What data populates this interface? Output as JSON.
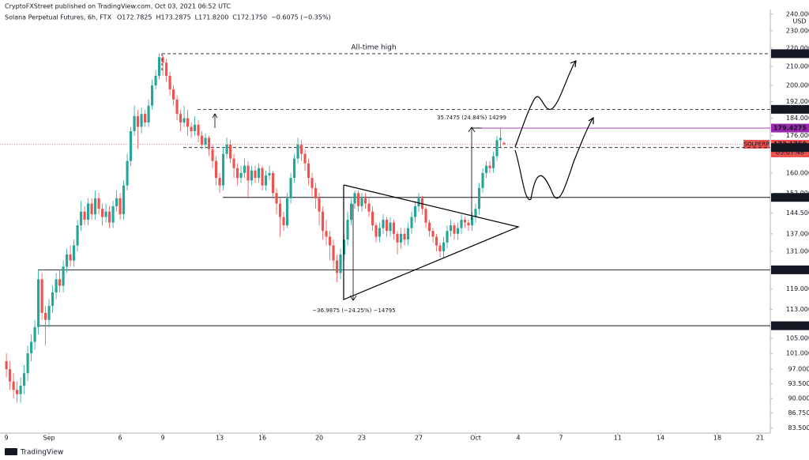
{
  "header": {
    "publisher": "CryptoFXStreet published on TradingView.com, Oct 03, 2021 06:52 UTC",
    "symbol": "Solana Perpetual Futures, 6h, FTX",
    "ohlc": [
      "O172.7825",
      "H173.2875",
      "L171.8200",
      "C172.1750",
      "−0.6075 (−0.35%)"
    ]
  },
  "footer": {
    "brand": "TradingView"
  },
  "chart_data": {
    "type": "candlestick",
    "name": "SOLPERP",
    "log_scale": true,
    "grid": false,
    "up_color": "#26a69a",
    "down_color": "#ef5350",
    "currency": "USD",
    "ylim": [
      82.4,
      242.8
    ],
    "xlim": [
      -1.8,
      214.9
    ],
    "yticks": [
      {
        "value": 240,
        "label": "240.0000"
      },
      {
        "value": 230,
        "label": "230.0000"
      },
      {
        "value": 220,
        "label": "220.0000"
      },
      {
        "value": 210,
        "label": "210.0000"
      },
      {
        "value": 200,
        "label": "200.0000"
      },
      {
        "value": 192,
        "label": "192.0000"
      },
      {
        "value": 184,
        "label": "184.0000"
      },
      {
        "value": 176,
        "label": "176.0000"
      },
      {
        "value": 160,
        "label": "160.0000"
      },
      {
        "value": 152,
        "label": "152.0000"
      },
      {
        "value": 144.5,
        "label": "144.5000"
      },
      {
        "value": 137,
        "label": "137.0000"
      },
      {
        "value": 131,
        "label": "131.0000"
      },
      {
        "value": 119,
        "label": "119.0000"
      },
      {
        "value": 113,
        "label": "113.0000"
      },
      {
        "value": 105,
        "label": "105.0000"
      },
      {
        "value": 101,
        "label": "101.0000"
      },
      {
        "value": 97,
        "label": "97.0000"
      },
      {
        "value": 93.5,
        "label": "93.5000"
      },
      {
        "value": 90,
        "label": "90.0000"
      },
      {
        "value": 86.75,
        "label": "86.7500"
      },
      {
        "value": 83.5,
        "label": "83.5000"
      }
    ],
    "xticks": [
      {
        "value": 0,
        "label": "9"
      },
      {
        "value": 12,
        "label": "Sep"
      },
      {
        "value": 32,
        "label": "6"
      },
      {
        "value": 44,
        "label": "9"
      },
      {
        "value": 60,
        "label": "13"
      },
      {
        "value": 72,
        "label": "16"
      },
      {
        "value": 88,
        "label": "20"
      },
      {
        "value": 100,
        "label": "23"
      },
      {
        "value": 116,
        "label": "27"
      },
      {
        "value": 132,
        "label": "Oct"
      },
      {
        "value": 144,
        "label": "4"
      },
      {
        "value": 156,
        "label": "7"
      },
      {
        "value": 172,
        "label": "11"
      },
      {
        "value": 184,
        "label": "14"
      },
      {
        "value": 200,
        "label": "18"
      },
      {
        "value": 212,
        "label": "21"
      }
    ],
    "open": [
      99,
      97,
      94,
      92,
      91,
      93,
      96,
      101,
      104,
      108,
      122,
      112,
      110,
      114,
      118,
      122,
      120,
      126,
      130,
      128,
      133,
      140,
      145,
      142,
      148,
      144,
      150,
      146,
      143,
      145,
      141,
      147,
      150,
      144,
      155,
      165,
      178,
      185,
      180,
      186,
      182,
      190,
      200,
      205,
      215,
      212,
      205,
      198,
      193,
      186,
      182,
      184,
      180,
      178,
      181,
      176,
      172,
      175,
      170,
      165,
      158,
      155,
      168,
      172,
      166,
      162,
      158,
      160,
      163,
      157,
      161,
      158,
      162,
      155,
      159,
      160,
      152,
      148,
      143,
      140,
      150,
      158,
      166,
      172,
      168,
      164,
      158,
      154,
      150,
      145,
      138,
      136,
      133,
      128,
      124,
      130,
      135,
      142,
      148,
      152,
      147,
      150,
      148,
      145,
      140,
      136,
      139,
      142,
      138,
      141,
      137,
      134,
      137,
      135,
      139,
      143,
      147,
      150,
      146,
      141,
      138,
      136,
      133,
      131,
      134,
      138,
      140,
      137,
      139,
      142,
      141,
      140,
      143,
      146,
      154,
      160,
      163,
      162,
      167,
      174,
      172.7825
    ],
    "high": [
      101,
      99,
      96,
      94,
      95,
      98,
      103,
      106,
      110,
      125,
      124,
      114,
      116,
      120,
      124,
      125,
      128,
      132,
      133,
      135,
      142,
      149,
      147,
      150,
      150,
      153,
      152,
      148,
      148,
      147,
      149,
      153,
      152,
      157,
      168,
      180,
      190,
      188,
      189,
      188,
      193,
      203,
      208,
      217,
      216,
      214,
      207,
      200,
      195,
      188,
      190,
      188,
      182,
      185,
      183,
      178,
      177,
      176,
      172,
      167,
      160,
      171,
      175,
      174,
      168,
      164,
      163,
      166,
      165,
      163,
      163,
      164,
      163,
      161,
      163,
      161,
      154,
      150,
      145,
      152,
      160,
      168,
      175,
      174,
      170,
      166,
      160,
      156,
      152,
      147,
      142,
      138,
      135,
      130,
      132,
      137,
      145,
      150,
      153,
      153,
      152,
      152,
      150,
      147,
      141,
      141,
      144,
      143,
      143,
      142,
      138,
      139,
      139,
      141,
      145,
      149,
      152,
      151,
      147,
      142,
      139,
      137,
      134,
      136,
      140,
      142,
      141,
      141,
      144,
      143,
      142,
      145,
      148,
      156,
      162,
      165,
      165,
      169,
      176,
      179.4,
      173.2875
    ],
    "low": [
      95,
      92,
      90,
      89,
      89,
      91,
      94,
      99,
      102,
      106,
      110,
      103,
      108,
      112,
      116,
      118,
      118,
      124,
      126,
      126,
      131,
      138,
      140,
      140,
      142,
      142,
      144,
      140,
      141,
      139,
      139,
      145,
      142,
      142,
      153,
      163,
      176,
      170,
      177,
      180,
      180,
      188,
      198,
      203,
      205,
      202,
      195,
      190,
      183,
      178,
      180,
      176,
      175,
      176,
      173,
      170,
      170,
      167,
      162,
      155,
      152,
      153,
      166,
      164,
      158,
      155,
      156,
      158,
      150,
      155,
      156,
      156,
      153,
      153,
      157,
      150,
      144,
      136,
      138,
      139,
      148,
      156,
      164,
      165,
      161,
      155,
      151,
      146,
      140,
      135,
      133,
      128,
      125,
      121,
      122,
      128,
      133,
      140,
      146,
      145,
      145,
      146,
      143,
      138,
      134,
      134,
      137,
      136,
      136,
      135,
      130,
      132,
      133,
      133,
      137,
      141,
      145,
      144,
      139,
      136,
      134,
      131,
      129,
      129,
      132,
      136,
      135,
      135,
      137,
      139,
      138,
      138,
      141,
      144,
      152,
      158,
      160,
      160,
      165,
      171,
      171.82
    ],
    "close": [
      97,
      94,
      92,
      91,
      93,
      96,
      101,
      104,
      108,
      122,
      112,
      110,
      114,
      118,
      122,
      120,
      126,
      130,
      128,
      133,
      140,
      145,
      142,
      148,
      144,
      150,
      146,
      143,
      145,
      141,
      147,
      150,
      144,
      155,
      165,
      178,
      185,
      180,
      186,
      182,
      190,
      200,
      205,
      215,
      212,
      205,
      198,
      193,
      186,
      182,
      184,
      180,
      178,
      181,
      176,
      172,
      175,
      170,
      165,
      158,
      155,
      168,
      172,
      166,
      162,
      158,
      160,
      163,
      157,
      161,
      158,
      162,
      155,
      159,
      160,
      152,
      148,
      143,
      140,
      150,
      158,
      166,
      172,
      168,
      164,
      158,
      154,
      150,
      145,
      138,
      136,
      133,
      128,
      124,
      130,
      135,
      142,
      148,
      152,
      147,
      150,
      148,
      145,
      140,
      136,
      139,
      142,
      138,
      141,
      137,
      134,
      137,
      135,
      139,
      143,
      147,
      150,
      146,
      141,
      138,
      136,
      133,
      131,
      134,
      138,
      140,
      137,
      139,
      142,
      141,
      140,
      143,
      146,
      154,
      160,
      163,
      162,
      167,
      174,
      175,
      172.175
    ],
    "levels": [
      {
        "value": 216.9125,
        "label": "216.9125",
        "color": "#131722",
        "style": "dashed"
      },
      {
        "value": 188.2025,
        "label": "188.2025",
        "color": "#131722",
        "style": "dashed"
      },
      {
        "value": 179.4275,
        "label": "179.4275",
        "color": "#9c27b0",
        "style": "solid"
      },
      {
        "value": 172.175,
        "label": "172.1750",
        "color": "#ef5350",
        "style": "dotted",
        "tag": "SOLPERP",
        "countdown": "05:07:48"
      },
      {
        "value": 170.7275,
        "label": "170.7275",
        "color": "#131722",
        "style": "dashed"
      },
      {
        "value": 150.34,
        "label": "150.3400",
        "color": "#131722",
        "style": "solid"
      },
      {
        "value": 124.975,
        "label": "124.9750",
        "color": "#131722",
        "style": "solid"
      },
      {
        "value": 108.37,
        "label": "108.3700",
        "color": "#131722",
        "style": "solid"
      }
    ],
    "annotations": [
      "All-time high",
      "35.7475 (24.84%) 14299",
      "−36.9875 (−24.25%) −14795"
    ]
  }
}
